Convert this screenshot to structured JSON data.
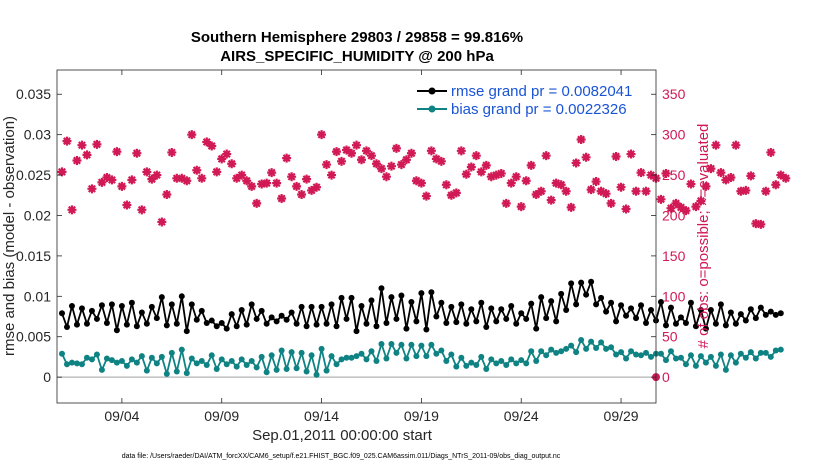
{
  "chart_data": {
    "type": "line",
    "title_line1": "Southern Hemisphere 29803 / 29858 = 99.816%",
    "title_line2": "AIRS_SPECIFIC_HUMIDITY @ 200 hPa",
    "ylabel_left": "rmse and bias (model - observation)",
    "ylabel_right": "# of obs: o=possible; ×=evaluated",
    "xlabel": "Sep.01,2011 00:00:00 start",
    "footer": "data file: /Users/raeder/DAI/ATM_forcXX/CAM6_setup/f.e21.FHIST_BGC.f09_025.CAM6assim.011/Diags_NTrS_2011-09/obs_diag_output.nc",
    "ylim_left": [
      -0.0032,
      0.038
    ],
    "ylim_right": [
      -32,
      380
    ],
    "xlim": [
      0.75,
      30.75
    ],
    "left_ticks": [
      "0",
      "0.005",
      "0.01",
      "0.015",
      "0.02",
      "0.025",
      "0.03",
      "0.035"
    ],
    "left_tick_values": [
      0,
      0.005,
      0.01,
      0.015,
      0.02,
      0.025,
      0.03,
      0.035
    ],
    "right_ticks": [
      "0",
      "50",
      "100",
      "150",
      "200",
      "250",
      "300",
      "350"
    ],
    "right_tick_values": [
      0,
      50,
      100,
      150,
      200,
      250,
      300,
      350
    ],
    "x_ticks": [
      "09/04",
      "09/09",
      "09/14",
      "09/19",
      "09/24",
      "09/29"
    ],
    "x_tick_values": [
      4,
      9,
      14,
      19,
      24,
      29
    ],
    "colors": {
      "rmse": "#000000",
      "bias": "#0f8383",
      "obs": "#d11a55",
      "legend_text": "#1a54d6",
      "zero_line": "#b3b3b3"
    },
    "series": [
      {
        "name": "rmse grand pr = 0.0082041",
        "axis": "left",
        "x_start": 1.0,
        "x_step": 0.25,
        "values": [
          0.0079,
          0.0062,
          0.0088,
          0.0065,
          0.0085,
          0.0066,
          0.0082,
          0.0072,
          0.0089,
          0.0067,
          0.009,
          0.0058,
          0.0088,
          0.0065,
          0.0092,
          0.0063,
          0.008,
          0.0066,
          0.0087,
          0.0073,
          0.0099,
          0.0064,
          0.009,
          0.0066,
          0.01,
          0.0057,
          0.009,
          0.0071,
          0.0082,
          0.0067,
          0.007,
          0.0063,
          0.0067,
          0.006,
          0.0078,
          0.0063,
          0.0083,
          0.0065,
          0.009,
          0.0072,
          0.0082,
          0.0066,
          0.0074,
          0.0069,
          0.0076,
          0.0071,
          0.008,
          0.0066,
          0.0087,
          0.0063,
          0.0087,
          0.0065,
          0.0087,
          0.0066,
          0.009,
          0.0063,
          0.0098,
          0.0072,
          0.0098,
          0.0057,
          0.0088,
          0.0066,
          0.0095,
          0.0063,
          0.011,
          0.0067,
          0.0099,
          0.0072,
          0.0101,
          0.006,
          0.0093,
          0.0069,
          0.0104,
          0.0059,
          0.0105,
          0.0075,
          0.0092,
          0.0067,
          0.0087,
          0.0068,
          0.009,
          0.0066,
          0.0084,
          0.0069,
          0.0092,
          0.0062,
          0.0085,
          0.0069,
          0.0084,
          0.0072,
          0.0088,
          0.0066,
          0.0079,
          0.0072,
          0.0091,
          0.006,
          0.0099,
          0.0073,
          0.0094,
          0.0069,
          0.0103,
          0.0083,
          0.0116,
          0.009,
          0.0117,
          0.0102,
          0.0118,
          0.009,
          0.0098,
          0.0081,
          0.0092,
          0.0069,
          0.0089,
          0.0076,
          0.0085,
          0.0073,
          0.0089,
          0.0067,
          0.0083,
          0.007,
          0.0093,
          0.0064,
          0.0086,
          0.0066,
          0.0074,
          0.0067,
          0.0092,
          0.0063,
          0.0083,
          0.006,
          0.0083,
          0.0066,
          0.009,
          0.0064,
          0.008,
          0.0066,
          0.0078,
          0.007,
          0.0084,
          0.0073,
          0.0086,
          0.0077,
          0.0081,
          0.0077,
          0.0079
        ]
      },
      {
        "name": "bias grand pr = 0.0022326",
        "axis": "left",
        "x_start": 1.0,
        "x_step": 0.25,
        "values": [
          0.0029,
          0.0016,
          0.0018,
          0.0017,
          0.0016,
          0.0024,
          0.0022,
          0.0028,
          0.0009,
          0.0023,
          0.0021,
          0.0018,
          0.002,
          0.0014,
          0.0022,
          0.0018,
          0.0026,
          0.0008,
          0.0024,
          0.0017,
          0.0025,
          0.0004,
          0.003,
          0.0007,
          0.0034,
          0.0005,
          0.0023,
          0.0017,
          0.002,
          0.0015,
          0.0027,
          0.001,
          0.0022,
          0.0016,
          0.002,
          0.0013,
          0.0022,
          0.0015,
          0.002,
          0.0012,
          0.0025,
          0.0006,
          0.0027,
          0.0009,
          0.0033,
          0.001,
          0.0031,
          0.0011,
          0.003,
          0.0007,
          0.0027,
          0.0003,
          0.0035,
          0.0008,
          0.0026,
          0.0016,
          0.0022,
          0.0024,
          0.0024,
          0.0026,
          0.0029,
          0.0022,
          0.0032,
          0.002,
          0.0041,
          0.0023,
          0.0041,
          0.003,
          0.004,
          0.0023,
          0.004,
          0.0026,
          0.0039,
          0.0026,
          0.004,
          0.0029,
          0.0033,
          0.002,
          0.0028,
          0.0013,
          0.0024,
          0.0014,
          0.0018,
          0.0015,
          0.0025,
          0.001,
          0.0022,
          0.0017,
          0.002,
          0.0015,
          0.0022,
          0.0017,
          0.0021,
          0.0017,
          0.0032,
          0.002,
          0.0032,
          0.0027,
          0.0034,
          0.003,
          0.0032,
          0.0035,
          0.0039,
          0.0031,
          0.0046,
          0.0035,
          0.0044,
          0.0036,
          0.0043,
          0.0035,
          0.0037,
          0.0028,
          0.0031,
          0.0023,
          0.0032,
          0.0028,
          0.0027,
          0.003,
          0.0025,
          0.0029,
          0.0029,
          0.0021,
          0.0032,
          0.0023,
          0.0024,
          0.0016,
          0.0027,
          0.0014,
          0.0026,
          0.0018,
          0.0025,
          0.0014,
          0.0028,
          0.0009,
          0.0027,
          0.0018,
          0.0029,
          0.0024,
          0.0031,
          0.0023,
          0.003,
          0.003,
          0.0025,
          0.0033,
          0.0034
        ]
      },
      {
        "name": "# of obs evaluated",
        "axis": "right",
        "x_start": 1.0,
        "x_step": 0.25,
        "values": [
          254,
          292,
          207,
          268,
          287,
          275,
          233,
          288,
          241,
          247,
          244,
          279,
          236,
          213,
          244,
          277,
          207,
          254,
          245,
          250,
          192,
          226,
          278,
          246,
          246,
          243,
          300,
          256,
          246,
          291,
          286,
          254,
          270,
          276,
          264,
          246,
          250,
          243,
          236,
          215,
          239,
          240,
          253,
          240,
          221,
          271,
          248,
          236,
          226,
          245,
          231,
          235,
          300,
          263,
          250,
          279,
          267,
          281,
          277,
          287,
          269,
          280,
          274,
          264,
          258,
          248,
          261,
          283,
          263,
          269,
          277,
          243,
          240,
          224,
          280,
          270,
          267,
          238,
          225,
          228,
          280,
          251,
          260,
          274,
          254,
          262,
          248,
          250,
          252,
          215,
          240,
          248,
          211,
          243,
          262,
          226,
          230,
          274,
          219,
          240,
          238,
          230,
          210,
          265,
          294,
          272,
          232,
          242,
          230,
          227,
          215,
          273,
          235,
          208,
          276,
          230,
          253,
          230,
          250,
          246,
          220,
          252,
          209,
          215,
          210,
          206,
          239,
          211,
          218,
          236,
          258,
          287,
          253,
          244,
          247,
          287,
          230,
          231,
          249,
          190,
          189,
          230,
          278,
          238,
          250,
          246
        ]
      }
    ],
    "possible_marker": {
      "x": 30.75,
      "value": 0
    },
    "legend": {
      "placement": "top-right",
      "entries": [
        "rmse grand pr = 0.0082041",
        "bias grand pr = 0.0022326"
      ]
    }
  }
}
